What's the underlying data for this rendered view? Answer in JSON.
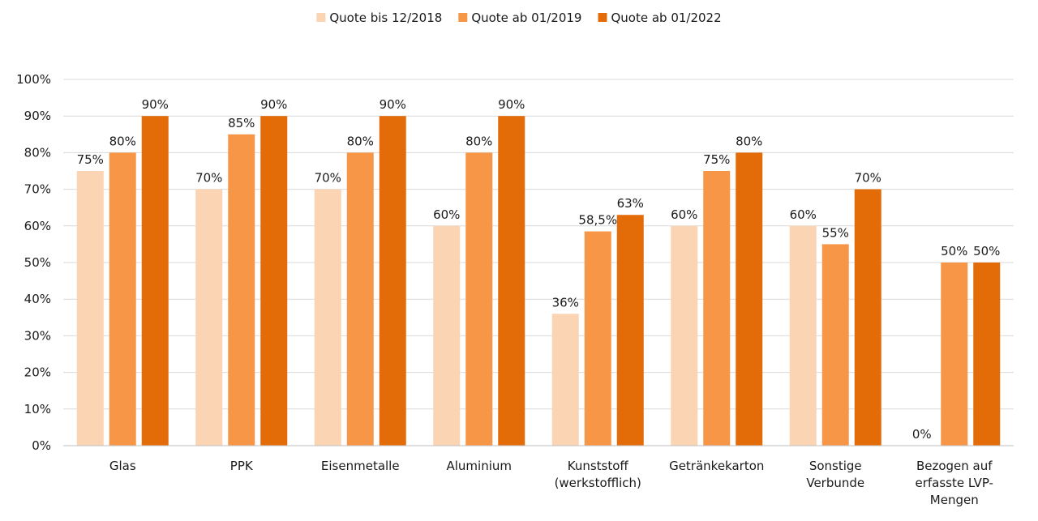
{
  "chart_data": {
    "type": "bar",
    "categories": [
      [
        "Glas"
      ],
      [
        "PPK"
      ],
      [
        "Eisenmetalle"
      ],
      [
        "Aluminium"
      ],
      [
        "Kunststoff",
        "(werkstofflich)"
      ],
      [
        "Getränkekarton"
      ],
      [
        "Sonstige",
        "Verbunde"
      ],
      [
        "Bezogen auf",
        "erfasste LVP-",
        "Mengen"
      ]
    ],
    "series": [
      {
        "name": "Quote bis 12/2018",
        "color": "#fbd4b4",
        "values": [
          75,
          70,
          70,
          60,
          36,
          60,
          60,
          0
        ],
        "labels": [
          "75%",
          "70%",
          "70%",
          "60%",
          "36%",
          "60%",
          "60%",
          "0%"
        ]
      },
      {
        "name": "Quote ab 01/2019",
        "color": "#f79646",
        "values": [
          80,
          85,
          80,
          80,
          58.5,
          75,
          55,
          50
        ],
        "labels": [
          "80%",
          "85%",
          "80%",
          "80%",
          "58,5%",
          "75%",
          "55%",
          "50%"
        ]
      },
      {
        "name": "Quote ab 01/2022",
        "color": "#e36c09",
        "values": [
          90,
          90,
          90,
          90,
          63,
          80,
          70,
          50
        ],
        "labels": [
          "90%",
          "90%",
          "90%",
          "90%",
          "63%",
          "80%",
          "70%",
          "50%"
        ]
      }
    ],
    "yticks": [
      "0%",
      "10%",
      "20%",
      "30%",
      "40%",
      "50%",
      "60%",
      "70%",
      "80%",
      "90%",
      "100%"
    ],
    "ylim": [
      0,
      100
    ],
    "grid": true,
    "legend_position": "top"
  }
}
